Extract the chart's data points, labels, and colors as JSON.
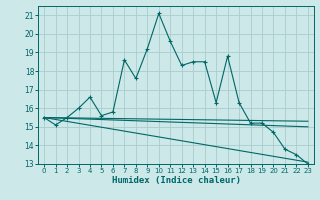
{
  "xlabel": "Humidex (Indice chaleur)",
  "bg_color": "#cce8e8",
  "grid_color": "#aacccc",
  "line_color": "#006666",
  "xlim": [
    -0.5,
    23.5
  ],
  "ylim": [
    13.0,
    21.5
  ],
  "yticks": [
    13,
    14,
    15,
    16,
    17,
    18,
    19,
    20,
    21
  ],
  "xticks": [
    0,
    1,
    2,
    3,
    4,
    5,
    6,
    7,
    8,
    9,
    10,
    11,
    12,
    13,
    14,
    15,
    16,
    17,
    18,
    19,
    20,
    21,
    22,
    23
  ],
  "series1_x": [
    0,
    1,
    2,
    3,
    4,
    5,
    6,
    7,
    8,
    9,
    10,
    11,
    12,
    13,
    14,
    15,
    16,
    17,
    18,
    19,
    20,
    21,
    22,
    23
  ],
  "series1_y": [
    15.5,
    15.1,
    15.5,
    16.0,
    16.6,
    15.6,
    15.8,
    18.6,
    17.6,
    19.2,
    21.1,
    19.6,
    18.3,
    18.5,
    18.5,
    16.3,
    18.8,
    16.3,
    15.2,
    15.2,
    14.7,
    13.8,
    13.5,
    13.0
  ],
  "trend1_x": [
    0,
    23
  ],
  "trend1_y": [
    15.5,
    15.3
  ],
  "trend2_x": [
    0,
    23
  ],
  "trend2_y": [
    15.5,
    15.0
  ],
  "trend3_x": [
    0,
    23
  ],
  "trend3_y": [
    15.5,
    13.1
  ]
}
